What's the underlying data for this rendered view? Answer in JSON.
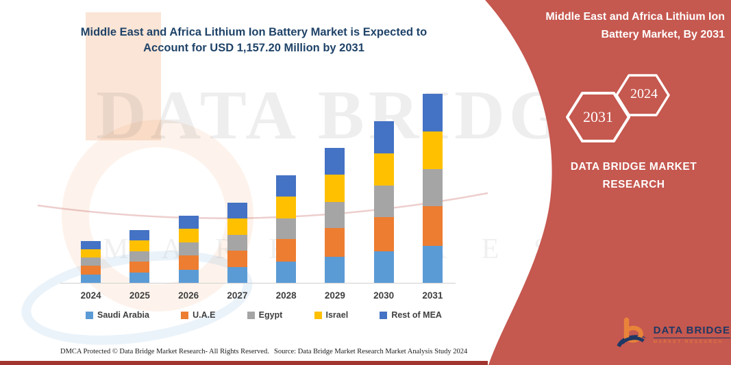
{
  "left_chart": {
    "title_line1": "Middle East and Africa Lithium Ion Battery Market is Expected to",
    "title_line2": "Account for USD 1,157.20 Million by 2031"
  },
  "chart_data": {
    "type": "bar",
    "stacked": true,
    "title": "Middle East and Africa Lithium Ion Battery Market is Expected to Account for USD 1,157.20 Million by 2031",
    "unit": "USD Million",
    "categories": [
      "2024",
      "2025",
      "2026",
      "2027",
      "2028",
      "2029",
      "2030",
      "2031"
    ],
    "series": [
      {
        "name": "Saudi Arabia",
        "color": "#5B9BD5",
        "values": [
          49.7,
          63.2,
          80.3,
          95.9,
          128.7,
          161.1,
          193.1,
          225.7
        ]
      },
      {
        "name": "U.A.E",
        "color": "#ED7D31",
        "values": [
          53.6,
          68.0,
          86.5,
          103.3,
          138.6,
          173.5,
          207.9,
          243.0
        ]
      },
      {
        "name": "Egypt",
        "color": "#A5A5A5",
        "values": [
          49.7,
          63.2,
          80.3,
          95.9,
          128.7,
          161.1,
          193.1,
          225.7
        ]
      },
      {
        "name": "Israel",
        "color": "#FFC000",
        "values": [
          51.0,
          64.8,
          82.4,
          98.4,
          132.0,
          165.2,
          198.0,
          231.4
        ]
      },
      {
        "name": "Rest of MEA",
        "color": "#4472C4",
        "values": [
          51.0,
          64.8,
          82.4,
          98.4,
          132.0,
          165.2,
          198.0,
          231.4
        ]
      }
    ],
    "totals": [
      255.0,
      324.0,
      411.9,
      491.9,
      660.0,
      826.0,
      990.1,
      1157.2
    ],
    "ylim": [
      0,
      1157.2
    ],
    "grid": false,
    "legend_position": "bottom"
  },
  "right_panel": {
    "bg_color": "#C5584F",
    "title_line1": "Middle East and Africa Lithium Ion",
    "title_line2": "Battery Market, By 2031",
    "hexagon_back_label": "2031",
    "hexagon_front_label": "2024",
    "brand_line1": "DATA BRIDGE MARKET",
    "brand_line2": "RESEARCH",
    "logo_name": "DATA BRIDGE",
    "logo_sub": "MARKET RESEARCH"
  },
  "watermark": {
    "line1": "DATA BRIDGE",
    "line2": "M A R K E T  R E S E A R C H"
  },
  "footer": {
    "left_text": "DMCA Protected © Data Bridge Market Research-  All Rights Reserved.",
    "right_text": "Source: Data Bridge Market Research  Market Analysis Study 2024"
  }
}
